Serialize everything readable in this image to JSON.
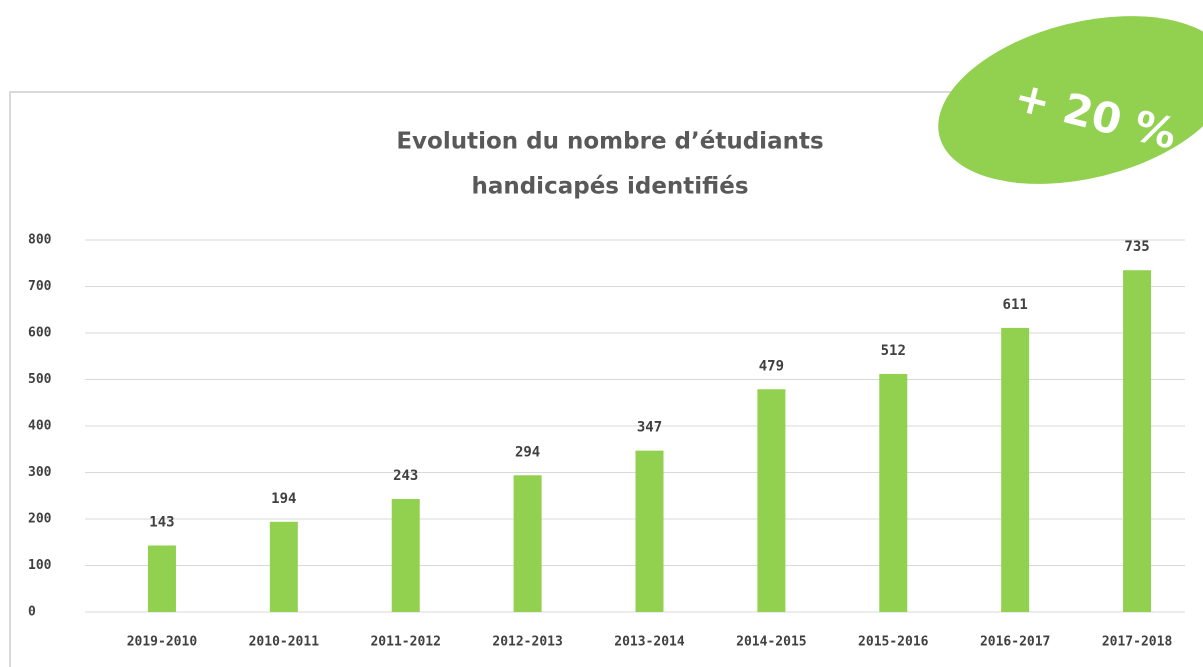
{
  "chart_data": {
    "type": "bar",
    "title": [
      "Evolution du nombre d’étudiants",
      "handicapés identifiés"
    ],
    "annotation": "+ 20 %",
    "categories": [
      "2019-2010",
      "2010-2011",
      "2011-2012",
      "2012-2013",
      "2013-2014",
      "2014-2015",
      "2015-2016",
      "2016-2017",
      "2017-2018"
    ],
    "values": [
      143,
      194,
      243,
      294,
      347,
      479,
      512,
      611,
      735
    ],
    "color": "#92d050",
    "ylim": [
      0,
      800
    ],
    "yticks": [
      0,
      100,
      200,
      300,
      400,
      500,
      600,
      700,
      800
    ],
    "grid": true
  }
}
